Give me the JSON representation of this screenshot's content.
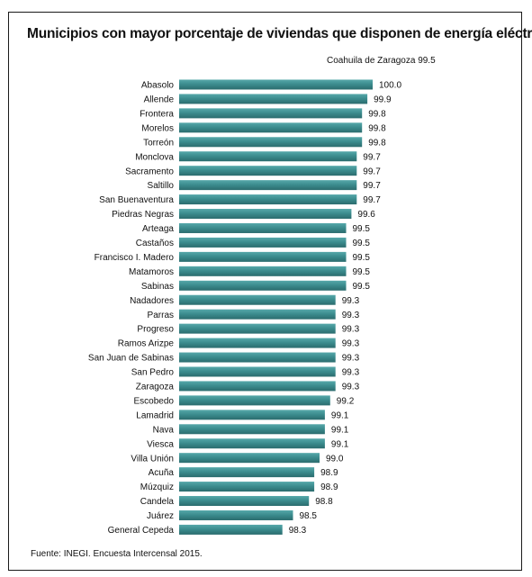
{
  "title": "Municipios con mayor porcentaje de viviendas que disponen de energía eléctrica",
  "reference": {
    "label": "Coahuila de Zaragoza",
    "value_text": "99.5"
  },
  "source": "Fuente: INEGI. Encuesta Intercensal 2015.",
  "colors": {
    "bar": "#3a8a8c",
    "bar_dark": "#2b6c6e",
    "bar_light": "#56a8aa",
    "text": "#111111",
    "border": "#1a1a1a"
  },
  "chart_data": {
    "type": "bar",
    "orientation": "horizontal",
    "categories": [
      "Abasolo",
      "Allende",
      "Frontera",
      "Morelos",
      "Torreón",
      "Monclova",
      "Sacramento",
      "Saltillo",
      "San Buenaventura",
      "Piedras Negras",
      "Arteaga",
      "Castaños",
      "Francisco I. Madero",
      "Matamoros",
      "Sabinas",
      "Nadadores",
      "Parras",
      "Progreso",
      "Ramos Arizpe",
      "San Juan de Sabinas",
      "San Pedro",
      "Zaragoza",
      "Escobedo",
      "Lamadrid",
      "Nava",
      "Viesca",
      "Villa Unión",
      "Acuña",
      "Múzquiz",
      "Candela",
      "Juárez",
      "General Cepeda"
    ],
    "values": [
      100.0,
      99.9,
      99.8,
      99.8,
      99.8,
      99.7,
      99.7,
      99.7,
      99.7,
      99.6,
      99.5,
      99.5,
      99.5,
      99.5,
      99.5,
      99.3,
      99.3,
      99.3,
      99.3,
      99.3,
      99.3,
      99.3,
      99.2,
      99.1,
      99.1,
      99.1,
      99.0,
      98.9,
      98.9,
      98.8,
      98.5,
      98.3
    ],
    "value_labels": [
      "100.0",
      "99.9",
      "99.8",
      "99.8",
      "99.8",
      "99.7",
      "99.7",
      "99.7",
      "99.7",
      "99.6",
      "99.5",
      "99.5",
      "99.5",
      "99.5",
      "99.5",
      "99.3",
      "99.3",
      "99.3",
      "99.3",
      "99.3",
      "99.3",
      "99.3",
      "99.2",
      "99.1",
      "99.1",
      "99.1",
      "99.0",
      "98.9",
      "98.9",
      "98.8",
      "98.5",
      "98.3"
    ],
    "title": "Municipios con mayor porcentaje de viviendas que disponen de energía eléctrica",
    "xlabel": "",
    "ylabel": "",
    "grid": false,
    "legend": "none"
  }
}
